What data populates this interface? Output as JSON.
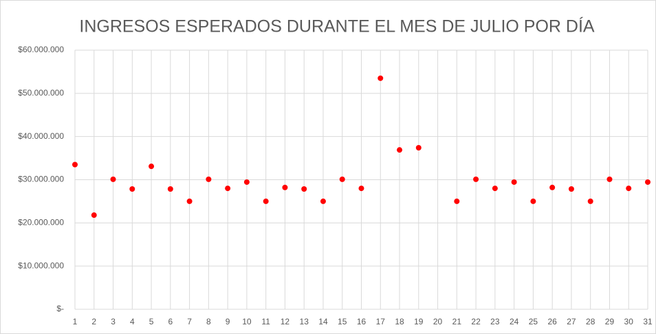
{
  "chart_data": {
    "type": "scatter",
    "title": "INGRESOS ESPERADOS DURANTE EL MES DE JULIO POR DÍA",
    "x": [
      1,
      2,
      3,
      4,
      5,
      6,
      7,
      8,
      9,
      10,
      11,
      12,
      13,
      14,
      15,
      16,
      17,
      18,
      19,
      20,
      21,
      22,
      23,
      24,
      25,
      26,
      27,
      28,
      29,
      30,
      31
    ],
    "values": [
      33500000,
      21800000,
      30100000,
      27850000,
      33100000,
      27850000,
      25000000,
      30100000,
      28000000,
      29450000,
      25000000,
      28200000,
      27850000,
      25000000,
      30100000,
      28000000,
      53500000,
      36900000,
      37400000,
      null,
      25000000,
      30100000,
      28000000,
      29450000,
      25000000,
      28200000,
      27850000,
      25000000,
      30100000,
      28000000,
      29450000
    ],
    "color": "#ff0000",
    "xlim": [
      1,
      31
    ],
    "xticks": [
      1,
      2,
      3,
      4,
      5,
      6,
      7,
      8,
      9,
      10,
      11,
      12,
      13,
      14,
      15,
      16,
      17,
      18,
      19,
      20,
      21,
      22,
      23,
      24,
      25,
      26,
      27,
      28,
      29,
      30,
      31
    ],
    "ylim": [
      0,
      60000000
    ],
    "yticks": [
      {
        "value": 0,
        "label": "$-"
      },
      {
        "value": 10000000,
        "label": "$10.000.000"
      },
      {
        "value": 20000000,
        "label": "$20.000.000"
      },
      {
        "value": 30000000,
        "label": "$30.000.000"
      },
      {
        "value": 40000000,
        "label": "$40.000.000"
      },
      {
        "value": 50000000,
        "label": "$50.000.000"
      },
      {
        "value": 60000000,
        "label": "$60.000.000"
      }
    ],
    "grid": true
  }
}
